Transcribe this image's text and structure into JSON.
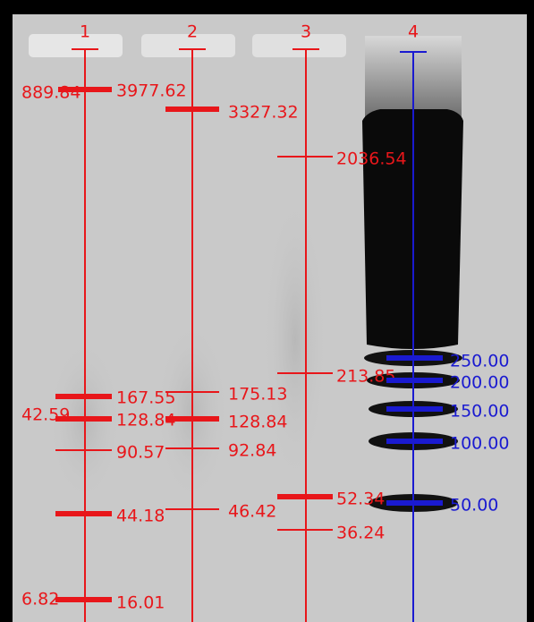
{
  "lanes": [
    {
      "label": "1",
      "bands": [
        {
          "label": "3977.62",
          "side_label": "889.84"
        },
        {
          "label": "167.55"
        },
        {
          "label": "128.84",
          "side_label": "42.59"
        },
        {
          "label": "90.57"
        },
        {
          "label": "44.18"
        },
        {
          "label": "16.01",
          "side_label": "6.82"
        }
      ]
    },
    {
      "label": "2",
      "bands": [
        {
          "label": "3327.32"
        },
        {
          "label": "175.13"
        },
        {
          "label": "128.84"
        },
        {
          "label": "92.84"
        },
        {
          "label": "46.42"
        }
      ]
    },
    {
      "label": "3",
      "bands": [
        {
          "label": "2036.54"
        },
        {
          "label": "213.85"
        },
        {
          "label": "52.34"
        },
        {
          "label": "36.24"
        }
      ]
    },
    {
      "label": "4",
      "bands": [
        {
          "label": "250.00"
        },
        {
          "label": "200.00"
        },
        {
          "label": "150.00"
        },
        {
          "label": "100.00"
        },
        {
          "label": "50.00"
        }
      ]
    }
  ]
}
